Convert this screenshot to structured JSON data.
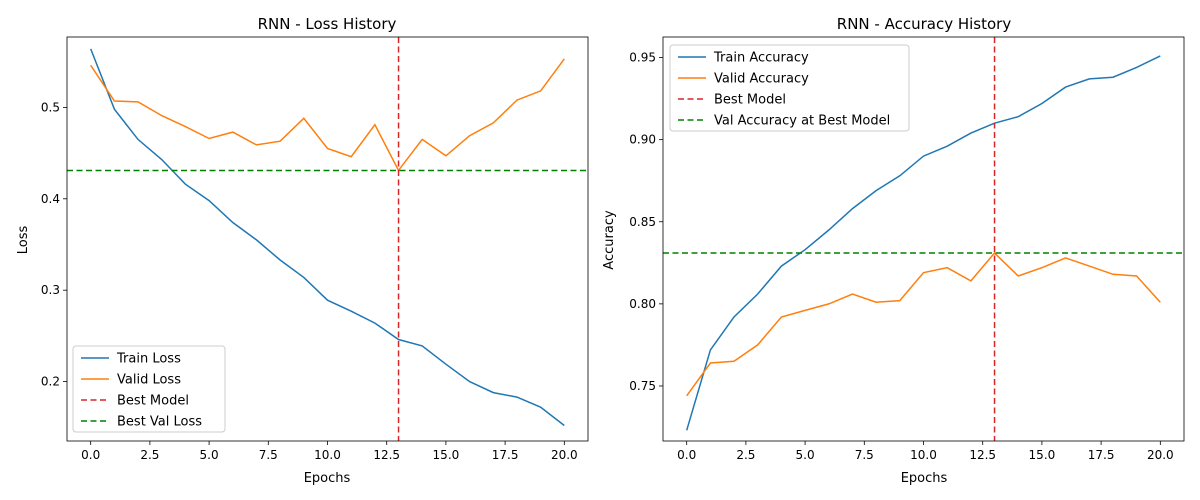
{
  "chart_data": [
    {
      "type": "line",
      "title": "RNN - Loss History",
      "xlabel": "Epochs",
      "ylabel": "Loss",
      "xlim": [
        -1,
        21
      ],
      "ylim": [
        0.135,
        0.577
      ],
      "xticks": [
        0,
        2.5,
        5,
        7.5,
        10,
        12.5,
        15,
        17.5,
        20
      ],
      "xtick_labels": [
        "0.0",
        "2.5",
        "5.0",
        "7.5",
        "10.0",
        "12.5",
        "15.0",
        "17.5",
        "20.0"
      ],
      "yticks": [
        0.2,
        0.3,
        0.4,
        0.5
      ],
      "ytick_labels": [
        "0.2",
        "0.3",
        "0.4",
        "0.5"
      ],
      "x": [
        0,
        1,
        2,
        3,
        4,
        5,
        6,
        7,
        8,
        9,
        10,
        11,
        12,
        13,
        14,
        15,
        16,
        17,
        18,
        19,
        20
      ],
      "series": [
        {
          "name": "Train Loss",
          "color": "#1f77b4",
          "values": [
            0.564,
            0.498,
            0.465,
            0.443,
            0.416,
            0.398,
            0.374,
            0.355,
            0.333,
            0.314,
            0.289,
            0.277,
            0.264,
            0.246,
            0.239,
            0.219,
            0.2,
            0.188,
            0.183,
            0.172,
            0.152
          ]
        },
        {
          "name": "Valid Loss",
          "color": "#ff7f0e",
          "values": [
            0.546,
            0.507,
            0.506,
            0.491,
            0.479,
            0.466,
            0.473,
            0.459,
            0.463,
            0.488,
            0.455,
            0.446,
            0.481,
            0.431,
            0.465,
            0.447,
            0.469,
            0.483,
            0.508,
            0.518,
            0.553
          ]
        }
      ],
      "vline": {
        "name": "Best Model",
        "x": 13,
        "color": "#d62728"
      },
      "hline": {
        "name": "Best Val Loss",
        "y": 0.431,
        "color": "#008000"
      },
      "legend": "lower-left",
      "grid": false
    },
    {
      "type": "line",
      "title": "RNN - Accuracy History",
      "xlabel": "Epochs",
      "ylabel": "Accuracy",
      "xlim": [
        -1,
        21
      ],
      "ylim": [
        0.7165,
        0.9625
      ],
      "xticks": [
        0,
        2.5,
        5,
        7.5,
        10,
        12.5,
        15,
        17.5,
        20
      ],
      "xtick_labels": [
        "0.0",
        "2.5",
        "5.0",
        "7.5",
        "10.0",
        "12.5",
        "15.0",
        "17.5",
        "20.0"
      ],
      "yticks": [
        0.75,
        0.8,
        0.85,
        0.9,
        0.95
      ],
      "ytick_labels": [
        "0.75",
        "0.80",
        "0.85",
        "0.90",
        "0.95"
      ],
      "x": [
        0,
        1,
        2,
        3,
        4,
        5,
        6,
        7,
        8,
        9,
        10,
        11,
        12,
        13,
        14,
        15,
        16,
        17,
        18,
        19,
        20
      ],
      "series": [
        {
          "name": "Train Accuracy",
          "color": "#1f77b4",
          "values": [
            0.723,
            0.772,
            0.792,
            0.806,
            0.823,
            0.833,
            0.845,
            0.858,
            0.869,
            0.878,
            0.89,
            0.896,
            0.904,
            0.91,
            0.914,
            0.922,
            0.932,
            0.937,
            0.938,
            0.944,
            0.951
          ]
        },
        {
          "name": "Valid Accuracy",
          "color": "#ff7f0e",
          "values": [
            0.744,
            0.764,
            0.765,
            0.775,
            0.792,
            0.796,
            0.8,
            0.806,
            0.801,
            0.802,
            0.819,
            0.822,
            0.814,
            0.831,
            0.817,
            0.822,
            0.828,
            0.823,
            0.818,
            0.817,
            0.801
          ]
        }
      ],
      "vline": {
        "name": "Best Model",
        "x": 13,
        "color": "#d62728"
      },
      "hline": {
        "name": "Val Accuracy at Best Model",
        "y": 0.831,
        "color": "#008000"
      },
      "legend": "upper-left",
      "grid": false
    }
  ]
}
